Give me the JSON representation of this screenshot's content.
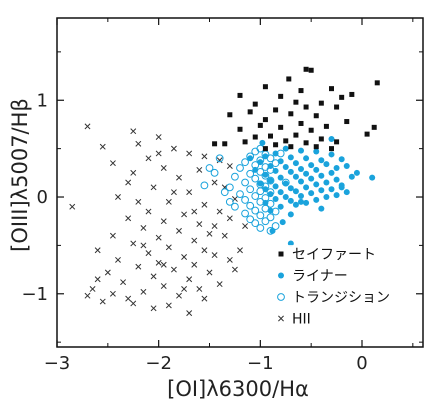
{
  "chart_data": {
    "type": "scatter",
    "title": "",
    "xlabel": "[OI]λ6300/Hα",
    "ylabel": "[OIII]λ5007/Hβ",
    "xlim": [
      -3.0,
      0.6
    ],
    "ylim": [
      -1.55,
      1.85
    ],
    "x_ticks": [
      -3,
      -2,
      -1,
      0
    ],
    "y_ticks": [
      -1,
      0,
      1
    ],
    "x_tick_labels": [
      "−3",
      "−2",
      "−1",
      "0"
    ],
    "y_tick_labels": [
      "−1",
      "0",
      "1"
    ],
    "grid": false,
    "legend_position": "lower-right",
    "series": [
      {
        "name": "セイファート",
        "marker": "filled-square",
        "color": "#111111",
        "points": [
          [
            -0.55,
            1.32
          ],
          [
            -0.5,
            1.31
          ],
          [
            0.15,
            1.18
          ],
          [
            -0.72,
            1.22
          ],
          [
            -0.95,
            1.14
          ],
          [
            -0.3,
            1.12
          ],
          [
            -0.6,
            1.1
          ],
          [
            -0.2,
            1.03
          ],
          [
            -1.2,
            1.05
          ],
          [
            -0.8,
            1.04
          ],
          [
            -0.1,
            1.06
          ],
          [
            -0.65,
            0.98
          ],
          [
            -0.4,
            0.97
          ],
          [
            -1.05,
            0.96
          ],
          [
            -0.55,
            0.93
          ],
          [
            -0.25,
            0.93
          ],
          [
            -0.85,
            0.9
          ],
          [
            0.12,
            0.72
          ],
          [
            -1.1,
            0.88
          ],
          [
            -0.7,
            0.86
          ],
          [
            -1.3,
            0.85
          ],
          [
            -0.45,
            0.84
          ],
          [
            -0.95,
            0.8
          ],
          [
            -0.15,
            0.78
          ],
          [
            -0.6,
            0.76
          ],
          [
            -1.0,
            0.74
          ],
          [
            -0.35,
            0.73
          ],
          [
            -0.8,
            0.72
          ],
          [
            -1.2,
            0.7
          ],
          [
            -0.5,
            0.69
          ],
          [
            0.05,
            0.65
          ],
          [
            -0.65,
            0.64
          ],
          [
            -0.9,
            0.63
          ],
          [
            -1.05,
            0.62
          ],
          [
            -0.4,
            0.6
          ],
          [
            -0.75,
            0.58
          ],
          [
            -1.15,
            0.57
          ],
          [
            -0.25,
            0.57
          ],
          [
            -0.55,
            0.56
          ],
          [
            -1.35,
            0.55
          ],
          [
            -0.85,
            0.54
          ],
          [
            -0.3,
            0.5
          ],
          [
            -0.7,
            0.52
          ],
          [
            -0.95,
            0.5
          ],
          [
            -0.45,
            0.52
          ],
          [
            -1.45,
            0.55
          ]
        ]
      },
      {
        "name": "ライナー",
        "marker": "filled-circle",
        "color": "#1aa3dc",
        "points": [
          [
            -0.75,
            0.5
          ],
          [
            -0.6,
            0.48
          ],
          [
            -0.45,
            0.47
          ],
          [
            -0.85,
            0.45
          ],
          [
            -0.3,
            0.44
          ],
          [
            -0.95,
            0.42
          ],
          [
            -0.7,
            0.41
          ],
          [
            -0.55,
            0.4
          ],
          [
            -0.2,
            0.39
          ],
          [
            -0.4,
            0.38
          ],
          [
            -0.8,
            0.37
          ],
          [
            -1.0,
            0.36
          ],
          [
            -0.65,
            0.35
          ],
          [
            -0.35,
            0.34
          ],
          [
            -0.5,
            0.33
          ],
          [
            -0.9,
            0.32
          ],
          [
            -0.15,
            0.32
          ],
          [
            -0.75,
            0.31
          ],
          [
            -0.25,
            0.3
          ],
          [
            -0.6,
            0.29
          ],
          [
            -0.45,
            0.28
          ],
          [
            -1.05,
            0.28
          ],
          [
            -0.85,
            0.27
          ],
          [
            -0.7,
            0.26
          ],
          [
            -0.3,
            0.25
          ],
          [
            -0.55,
            0.24
          ],
          [
            -0.95,
            0.23
          ],
          [
            -0.4,
            0.22
          ],
          [
            -0.65,
            0.21
          ],
          [
            -0.1,
            0.21
          ],
          [
            -0.8,
            0.2
          ],
          [
            -0.5,
            0.19
          ],
          [
            -0.25,
            0.18
          ],
          [
            -0.9,
            0.17
          ],
          [
            -0.6,
            0.16
          ],
          [
            -0.35,
            0.15
          ],
          [
            -0.75,
            0.14
          ],
          [
            -1.0,
            0.14
          ],
          [
            -0.45,
            0.13
          ],
          [
            -0.2,
            0.12
          ],
          [
            -0.85,
            0.11
          ],
          [
            -0.55,
            0.1
          ],
          [
            -0.7,
            0.09
          ],
          [
            -0.3,
            0.08
          ],
          [
            -0.95,
            0.08
          ],
          [
            -0.4,
            0.07
          ],
          [
            -0.65,
            0.06
          ],
          [
            -0.15,
            0.05
          ],
          [
            -0.8,
            0.05
          ],
          [
            -0.5,
            0.04
          ],
          [
            -0.9,
            0.03
          ],
          [
            -0.25,
            0.02
          ],
          [
            -0.6,
            0.01
          ],
          [
            -0.75,
            0.0
          ],
          [
            -0.35,
            0.0
          ],
          [
            -0.85,
            -0.02
          ],
          [
            -0.45,
            -0.03
          ],
          [
            -0.7,
            -0.04
          ],
          [
            -0.55,
            -0.06
          ],
          [
            -0.95,
            -0.06
          ],
          [
            -0.65,
            -0.08
          ],
          [
            -0.8,
            -0.1
          ],
          [
            -0.4,
            -0.12
          ],
          [
            -0.9,
            -0.14
          ],
          [
            -0.7,
            -0.18
          ],
          [
            -0.6,
            -0.05
          ],
          [
            -0.2,
            0.1
          ],
          [
            -0.05,
            0.25
          ],
          [
            0.1,
            0.2
          ],
          [
            -1.1,
            0.4
          ],
          [
            -0.98,
            0.56
          ],
          [
            -0.78,
            -0.26
          ],
          [
            -0.88,
            -0.35
          ],
          [
            -0.7,
            -0.48
          ],
          [
            -0.3,
            0.6
          ]
        ]
      },
      {
        "name": "トランジション",
        "marker": "open-circle",
        "color": "#1aa3dc",
        "points": [
          [
            -1.0,
            0.5
          ],
          [
            -1.05,
            0.47
          ],
          [
            -0.95,
            0.44
          ],
          [
            -1.1,
            0.42
          ],
          [
            -0.9,
            0.4
          ],
          [
            -1.0,
            0.38
          ],
          [
            -1.15,
            0.36
          ],
          [
            -0.85,
            0.35
          ],
          [
            -1.05,
            0.33
          ],
          [
            -0.95,
            0.31
          ],
          [
            -1.2,
            0.3
          ],
          [
            -0.9,
            0.28
          ],
          [
            -1.0,
            0.26
          ],
          [
            -1.1,
            0.24
          ],
          [
            -0.95,
            0.22
          ],
          [
            -1.25,
            0.21
          ],
          [
            -1.05,
            0.19
          ],
          [
            -0.9,
            0.17
          ],
          [
            -1.15,
            0.15
          ],
          [
            -1.0,
            0.13
          ],
          [
            -0.95,
            0.11
          ],
          [
            -1.3,
            0.1
          ],
          [
            -1.1,
            0.08
          ],
          [
            -1.0,
            0.06
          ],
          [
            -0.9,
            0.05
          ],
          [
            -1.2,
            0.03
          ],
          [
            -1.05,
            0.01
          ],
          [
            -0.95,
            -0.01
          ],
          [
            -1.15,
            -0.03
          ],
          [
            -1.0,
            -0.05
          ],
          [
            -0.9,
            -0.07
          ],
          [
            -1.1,
            -0.09
          ],
          [
            -1.25,
            -0.1
          ],
          [
            -0.95,
            -0.12
          ],
          [
            -1.05,
            -0.14
          ],
          [
            -0.85,
            -0.15
          ],
          [
            -1.15,
            -0.17
          ],
          [
            -1.0,
            -0.19
          ],
          [
            -0.9,
            -0.21
          ],
          [
            -1.1,
            -0.23
          ],
          [
            -0.95,
            -0.25
          ],
          [
            -1.05,
            -0.27
          ],
          [
            -0.85,
            -0.3
          ],
          [
            -1.0,
            -0.32
          ],
          [
            -0.9,
            -0.35
          ],
          [
            -1.4,
            0.4
          ],
          [
            -1.45,
            0.25
          ],
          [
            -1.35,
            0.05
          ],
          [
            -1.55,
            0.12
          ],
          [
            -1.3,
            -0.05
          ],
          [
            -0.8,
            0.45
          ],
          [
            -0.75,
            0.15
          ],
          [
            -1.5,
            0.3
          ]
        ]
      },
      {
        "name": "HII",
        "marker": "x-cross",
        "color": "#333333",
        "points": [
          [
            -2.7,
            0.73
          ],
          [
            -2.55,
            0.52
          ],
          [
            -2.45,
            0.35
          ],
          [
            -2.25,
            0.68
          ],
          [
            -2.2,
            0.55
          ],
          [
            -2.0,
            0.62
          ],
          [
            -1.85,
            0.5
          ],
          [
            -1.7,
            0.45
          ],
          [
            -1.55,
            0.42
          ],
          [
            -1.4,
            0.38
          ],
          [
            -2.1,
            0.4
          ],
          [
            -1.95,
            0.3
          ],
          [
            -1.6,
            0.28
          ],
          [
            -1.3,
            0.32
          ],
          [
            -1.8,
            0.2
          ],
          [
            -1.45,
            0.15
          ],
          [
            -2.3,
            0.15
          ],
          [
            -2.05,
            0.1
          ],
          [
            -1.7,
            0.05
          ],
          [
            -1.35,
            0.1
          ],
          [
            -2.85,
            -0.1
          ],
          [
            -2.4,
            0.0
          ],
          [
            -2.2,
            -0.05
          ],
          [
            -1.9,
            -0.05
          ],
          [
            -1.55,
            -0.08
          ],
          [
            -1.25,
            -0.02
          ],
          [
            -2.1,
            -0.15
          ],
          [
            -1.75,
            -0.18
          ],
          [
            -1.4,
            -0.15
          ],
          [
            -2.3,
            -0.22
          ],
          [
            -1.95,
            -0.25
          ],
          [
            -1.6,
            -0.28
          ],
          [
            -1.3,
            -0.22
          ],
          [
            -2.15,
            -0.32
          ],
          [
            -1.8,
            -0.35
          ],
          [
            -1.5,
            -0.38
          ],
          [
            -2.0,
            -0.42
          ],
          [
            -1.65,
            -0.45
          ],
          [
            -1.35,
            -0.4
          ],
          [
            -2.25,
            -0.48
          ],
          [
            -1.9,
            -0.52
          ],
          [
            -1.55,
            -0.55
          ],
          [
            -2.1,
            -0.58
          ],
          [
            -1.75,
            -0.62
          ],
          [
            -1.45,
            -0.6
          ],
          [
            -2.4,
            -0.65
          ],
          [
            -2.0,
            -0.68
          ],
          [
            -1.65,
            -0.7
          ],
          [
            -1.3,
            -0.65
          ],
          [
            -2.2,
            -0.72
          ],
          [
            -1.85,
            -0.75
          ],
          [
            -1.5,
            -0.78
          ],
          [
            -2.05,
            -0.82
          ],
          [
            -1.7,
            -0.85
          ],
          [
            -2.35,
            -0.88
          ],
          [
            -1.95,
            -0.92
          ],
          [
            -1.6,
            -0.95
          ],
          [
            -2.15,
            -0.98
          ],
          [
            -1.8,
            -1.02
          ],
          [
            -2.3,
            -1.05
          ],
          [
            -2.6,
            -0.85
          ],
          [
            -2.65,
            -0.95
          ],
          [
            -2.45,
            -1.0
          ],
          [
            -2.25,
            -1.1
          ],
          [
            -1.9,
            -1.12
          ],
          [
            -1.55,
            -1.05
          ],
          [
            -2.05,
            -1.15
          ],
          [
            -1.7,
            -1.2
          ],
          [
            -2.5,
            -0.78
          ],
          [
            -1.4,
            -0.9
          ],
          [
            -2.7,
            -1.02
          ],
          [
            -2.55,
            -1.08
          ],
          [
            -1.25,
            -0.75
          ],
          [
            -1.15,
            -0.3
          ],
          [
            -1.2,
            -0.55
          ],
          [
            -2.0,
            0.45
          ],
          [
            -1.85,
            0.05
          ],
          [
            -2.25,
            0.25
          ],
          [
            -1.65,
            -0.15
          ],
          [
            -2.45,
            -0.4
          ],
          [
            -2.6,
            -0.55
          ],
          [
            -1.75,
            -0.95
          ],
          [
            -1.95,
            -0.7
          ],
          [
            -2.15,
            -0.5
          ],
          [
            -1.45,
            -0.3
          ]
        ]
      }
    ]
  }
}
